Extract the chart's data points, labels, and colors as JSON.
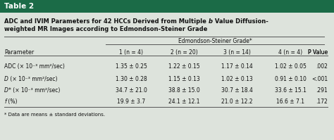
{
  "table_num": "Table 2",
  "title_line1": "ADC and IVIM Parameters for 42 HCCs Derived from Multiple b Value Diffusion-",
  "title_line2": "weighted MR Images according to Edmondson-Steiner Grade",
  "group_header": "Edmondson-Steiner Grade*",
  "col_headers": [
    "Parameter",
    "1 (n = 4)",
    "2 (n = 20)",
    "3 (n = 14)",
    "4 (n = 4)",
    "P Value"
  ],
  "rows": [
    [
      "ADC (× 10⁻³ mm²/sec)",
      "1.35 ± 0.25",
      "1.22 ± 0.15",
      "1.17 ± 0.14",
      "1.02 ± 0.05",
      ".002"
    ],
    [
      "D (× 10⁻³ mm²/sec)",
      "1.30 ± 0.28",
      "1.15 ± 0.13",
      "1.02 ± 0.13",
      "0.91 ± 0.10",
      "<.001"
    ],
    [
      "D* (× 10⁻³ mm²/sec)",
      "34.7 ± 21.0",
      "38.8 ± 15.0",
      "30.7 ± 18.4",
      "33.6 ± 15.1",
      ".291"
    ],
    [
      "f (%)",
      "19.9 ± 3.7",
      "24.1 ± 12.1",
      "21.0 ± 12.2",
      "16.6 ± 7.1",
      ".172"
    ]
  ],
  "footnote": "* Data are means ± standard deviations.",
  "header_bg": "#1b6b47",
  "table_bg": "#dde3dc",
  "row_bg_light": "#e8ede7",
  "header_text_color": "#ffffff",
  "body_text_color": "#111111",
  "title_text_color": "#111111"
}
